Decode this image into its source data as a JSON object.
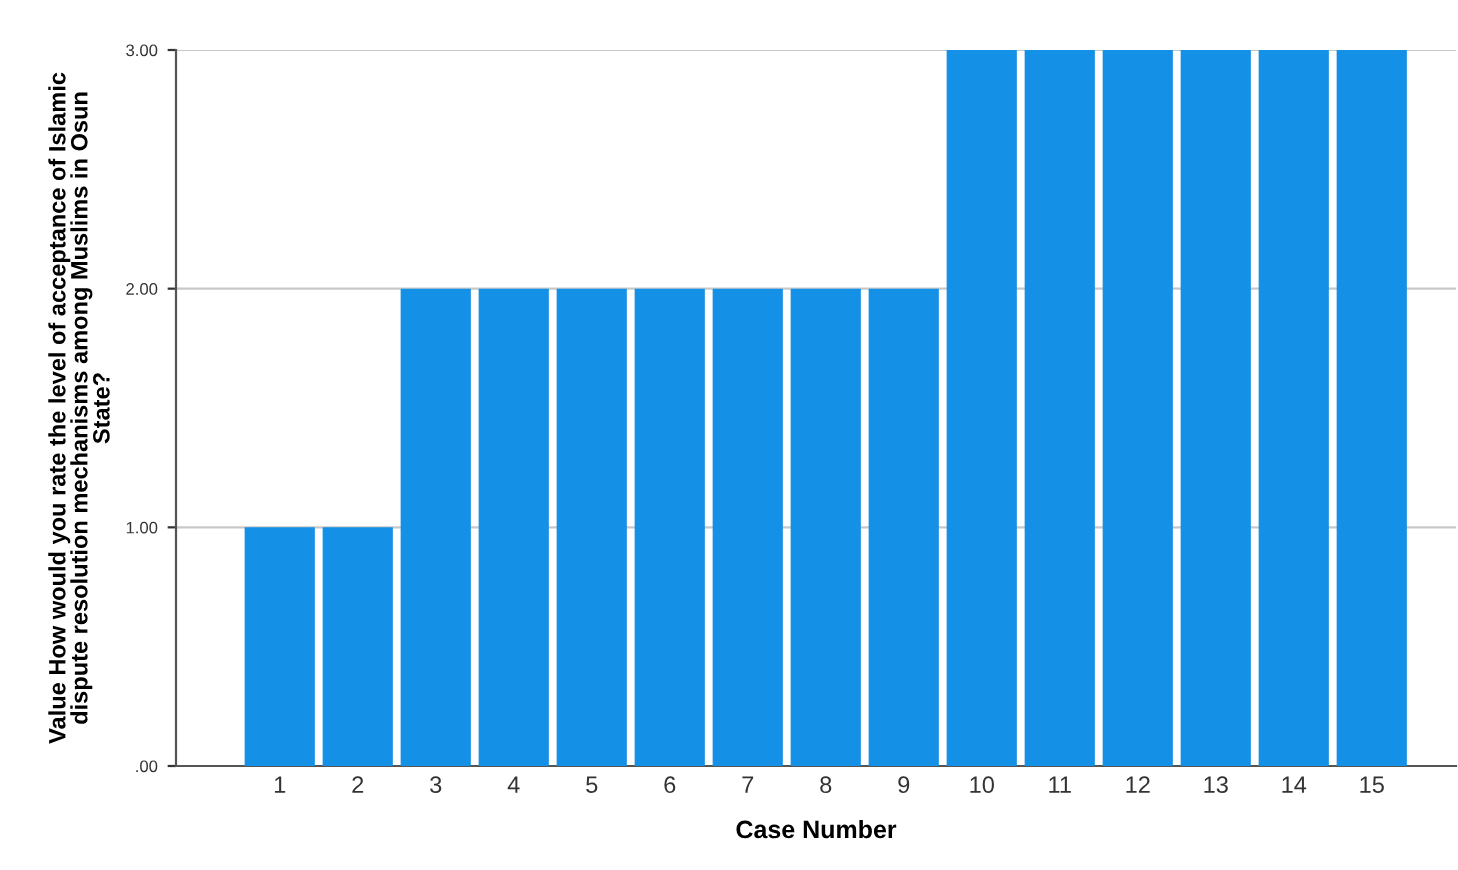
{
  "chart_data": {
    "type": "bar",
    "categories": [
      "1",
      "2",
      "3",
      "4",
      "5",
      "6",
      "7",
      "8",
      "9",
      "10",
      "11",
      "12",
      "13",
      "14",
      "15"
    ],
    "values": [
      1,
      1,
      2,
      2,
      2,
      2,
      2,
      2,
      2,
      3,
      3,
      3,
      3,
      3,
      3
    ],
    "color": "#1490e6",
    "xlabel": "Case Number",
    "ylabel": "Value How would you rate the level of acceptance of Islamic dispute resolution mechanisms among Muslims in Osun State?",
    "ylim": [
      0,
      3
    ],
    "yticks": [
      {
        "value": 0,
        "label": ".00"
      },
      {
        "value": 1,
        "label": "1.00"
      },
      {
        "value": 2,
        "label": "2.00"
      },
      {
        "value": 3,
        "label": "3.00"
      }
    ],
    "grid": "y",
    "legend": false
  }
}
